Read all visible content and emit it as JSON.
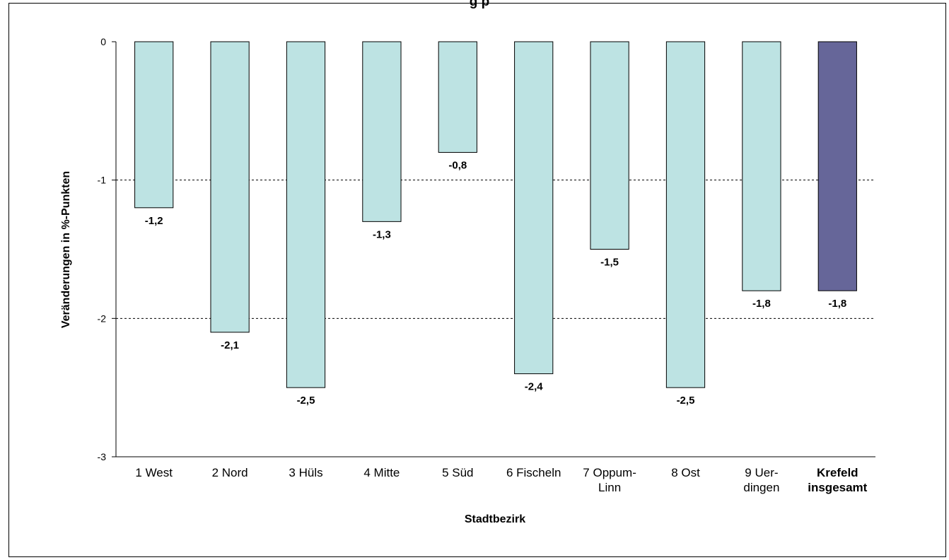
{
  "chart_data": {
    "type": "bar",
    "title": "",
    "title_visible_fragment": "g                  p",
    "xlabel": "Stadtbezirk",
    "ylabel": "Veränderungen in %-Punkten",
    "ylim": [
      -3,
      0
    ],
    "yticks": [
      0,
      -1,
      -2,
      -3
    ],
    "ytick_labels": [
      "0",
      "-1",
      "-2",
      "-3"
    ],
    "grid": "horizontal dashed",
    "categories": [
      [
        "1 West"
      ],
      [
        "2 Nord"
      ],
      [
        "3 Hüls"
      ],
      [
        "4 Mitte"
      ],
      [
        "5 Süd"
      ],
      [
        "6 Fischeln"
      ],
      [
        "7 Oppum-",
        "Linn"
      ],
      [
        "8 Ost"
      ],
      [
        "9 Uer-",
        "dingen"
      ],
      [
        "Krefeld",
        "insgesamt"
      ]
    ],
    "values": [
      -1.2,
      -2.1,
      -2.5,
      -1.3,
      -0.8,
      -2.4,
      -1.5,
      -2.5,
      -1.8,
      -1.8
    ],
    "value_labels": [
      "-1,2",
      "-2,1",
      "-2,5",
      "-1,3",
      "-0,8",
      "-2,4",
      "-1,5",
      "-2,5",
      "-1,8",
      "-1,8"
    ],
    "bar_colors": [
      "#bde3e3",
      "#bde3e3",
      "#bde3e3",
      "#bde3e3",
      "#bde3e3",
      "#bde3e3",
      "#bde3e3",
      "#bde3e3",
      "#bde3e3",
      "#666699"
    ],
    "bold_categories": [
      9
    ]
  }
}
